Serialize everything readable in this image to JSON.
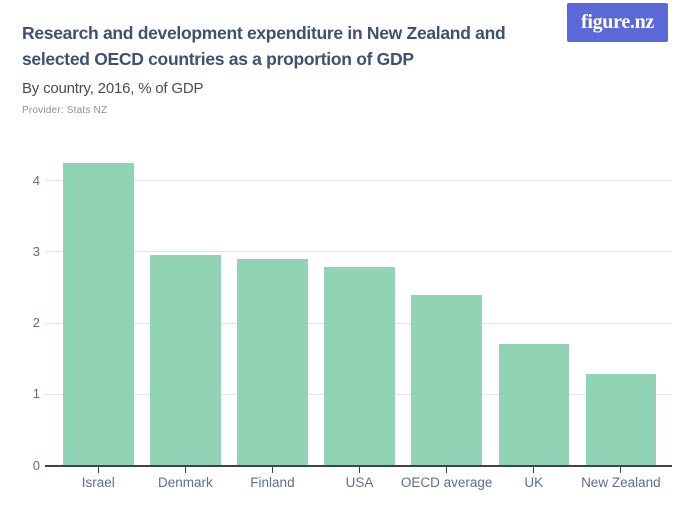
{
  "brand": {
    "logo_text": "figure.nz",
    "logo_bg": "#5a68d8",
    "logo_text_color": "#ffffff"
  },
  "header": {
    "title_lines": [
      "Research and development expenditure in New Zealand and",
      "selected OECD countries as a proportion of GDP"
    ],
    "subtitle": "By country, 2016, % of GDP",
    "provider": "Provider: Stats NZ"
  },
  "chart_data": {
    "type": "bar",
    "title": "Research and development expenditure in New Zealand and selected OECD countries as a proportion of GDP",
    "subtitle": "By country, 2016, % of GDP",
    "categories": [
      "Israel",
      "Denmark",
      "Finland",
      "USA",
      "OECD average",
      "UK",
      "New Zealand"
    ],
    "values": [
      4.25,
      2.96,
      2.9,
      2.79,
      2.4,
      1.7,
      1.28
    ],
    "units": "% of GDP",
    "xlabel": "",
    "ylabel": "",
    "y_ticks": [
      0,
      1,
      2,
      3,
      4
    ],
    "ylim": [
      0,
      4.4
    ],
    "grid": true,
    "legend": "none",
    "bar_color": "#92d3b5"
  },
  "colors": {
    "title_text": "#3e5170",
    "subtitle_text": "#4c4c4c",
    "provider_text": "#8f8f8f",
    "axis_label": "#5e6e8e",
    "gridline": "#e4e4e4",
    "axis_line": "#3b4250"
  }
}
